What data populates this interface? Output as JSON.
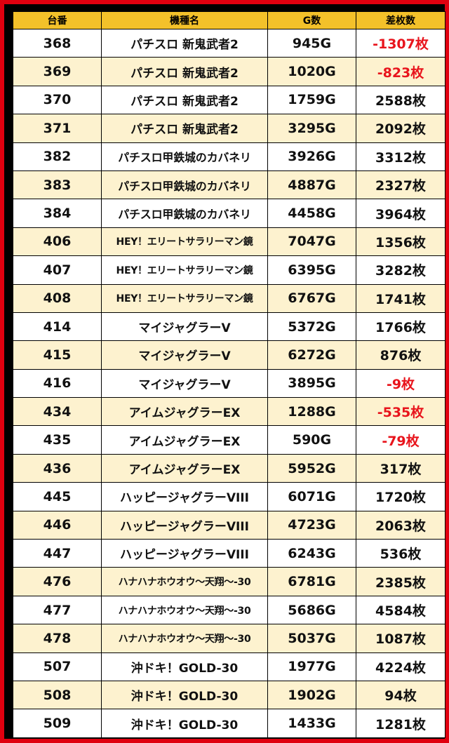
{
  "columns": [
    "台番",
    "機種名",
    "G数",
    "差枚数"
  ],
  "colors": {
    "header_bg": "#f3c12a",
    "even_row_bg": "#fdf2cf",
    "negative_text": "#e8141c",
    "frame": "#e0000f"
  },
  "rows": [
    {
      "no": "368",
      "name": "パチスロ 新鬼武者2",
      "games": "945G",
      "diff": "-1307枚",
      "negative": true,
      "size": "normal"
    },
    {
      "no": "369",
      "name": "パチスロ 新鬼武者2",
      "games": "1020G",
      "diff": "-823枚",
      "negative": true,
      "size": "normal"
    },
    {
      "no": "370",
      "name": "パチスロ 新鬼武者2",
      "games": "1759G",
      "diff": "2588枚",
      "negative": false,
      "size": "normal"
    },
    {
      "no": "371",
      "name": "パチスロ 新鬼武者2",
      "games": "3295G",
      "diff": "2092枚",
      "negative": false,
      "size": "normal"
    },
    {
      "no": "382",
      "name": "パチスロ甲鉄城のカバネリ",
      "games": "3926G",
      "diff": "3312枚",
      "negative": false,
      "size": "med"
    },
    {
      "no": "383",
      "name": "パチスロ甲鉄城のカバネリ",
      "games": "4887G",
      "diff": "2327枚",
      "negative": false,
      "size": "med"
    },
    {
      "no": "384",
      "name": "パチスロ甲鉄城のカバネリ",
      "games": "4458G",
      "diff": "3964枚",
      "negative": false,
      "size": "med"
    },
    {
      "no": "406",
      "name": "HEY！エリートサラリーマン鏡",
      "games": "7047G",
      "diff": "1356枚",
      "negative": false,
      "size": "small"
    },
    {
      "no": "407",
      "name": "HEY！エリートサラリーマン鏡",
      "games": "6395G",
      "diff": "3282枚",
      "negative": false,
      "size": "small"
    },
    {
      "no": "408",
      "name": "HEY！エリートサラリーマン鏡",
      "games": "6767G",
      "diff": "1741枚",
      "negative": false,
      "size": "small"
    },
    {
      "no": "414",
      "name": "マイジャグラーV",
      "games": "5372G",
      "diff": "1766枚",
      "negative": false,
      "size": "normal"
    },
    {
      "no": "415",
      "name": "マイジャグラーV",
      "games": "6272G",
      "diff": "876枚",
      "negative": false,
      "size": "normal"
    },
    {
      "no": "416",
      "name": "マイジャグラーV",
      "games": "3895G",
      "diff": "-9枚",
      "negative": true,
      "size": "normal"
    },
    {
      "no": "434",
      "name": "アイムジャグラーEX",
      "games": "1288G",
      "diff": "-535枚",
      "negative": true,
      "size": "normal"
    },
    {
      "no": "435",
      "name": "アイムジャグラーEX",
      "games": "590G",
      "diff": "-79枚",
      "negative": true,
      "size": "normal"
    },
    {
      "no": "436",
      "name": "アイムジャグラーEX",
      "games": "5952G",
      "diff": "317枚",
      "negative": false,
      "size": "normal"
    },
    {
      "no": "445",
      "name": "ハッピージャグラーVIII",
      "games": "6071G",
      "diff": "1720枚",
      "negative": false,
      "size": "normal"
    },
    {
      "no": "446",
      "name": "ハッピージャグラーVIII",
      "games": "4723G",
      "diff": "2063枚",
      "negative": false,
      "size": "normal"
    },
    {
      "no": "447",
      "name": "ハッピージャグラーVIII",
      "games": "6243G",
      "diff": "536枚",
      "negative": false,
      "size": "normal"
    },
    {
      "no": "476",
      "name": "ハナハナホウオウ～天翔～-30",
      "games": "6781G",
      "diff": "2385枚",
      "negative": false,
      "size": "small"
    },
    {
      "no": "477",
      "name": "ハナハナホウオウ～天翔～-30",
      "games": "5686G",
      "diff": "4584枚",
      "negative": false,
      "size": "small"
    },
    {
      "no": "478",
      "name": "ハナハナホウオウ～天翔～-30",
      "games": "5037G",
      "diff": "1087枚",
      "negative": false,
      "size": "small"
    },
    {
      "no": "507",
      "name": "沖ドキ！GOLD-30",
      "games": "1977G",
      "diff": "4224枚",
      "negative": false,
      "size": "normal"
    },
    {
      "no": "508",
      "name": "沖ドキ！GOLD-30",
      "games": "1902G",
      "diff": "94枚",
      "negative": false,
      "size": "normal"
    },
    {
      "no": "509",
      "name": "沖ドキ！GOLD-30",
      "games": "1433G",
      "diff": "1281枚",
      "negative": false,
      "size": "normal"
    }
  ]
}
